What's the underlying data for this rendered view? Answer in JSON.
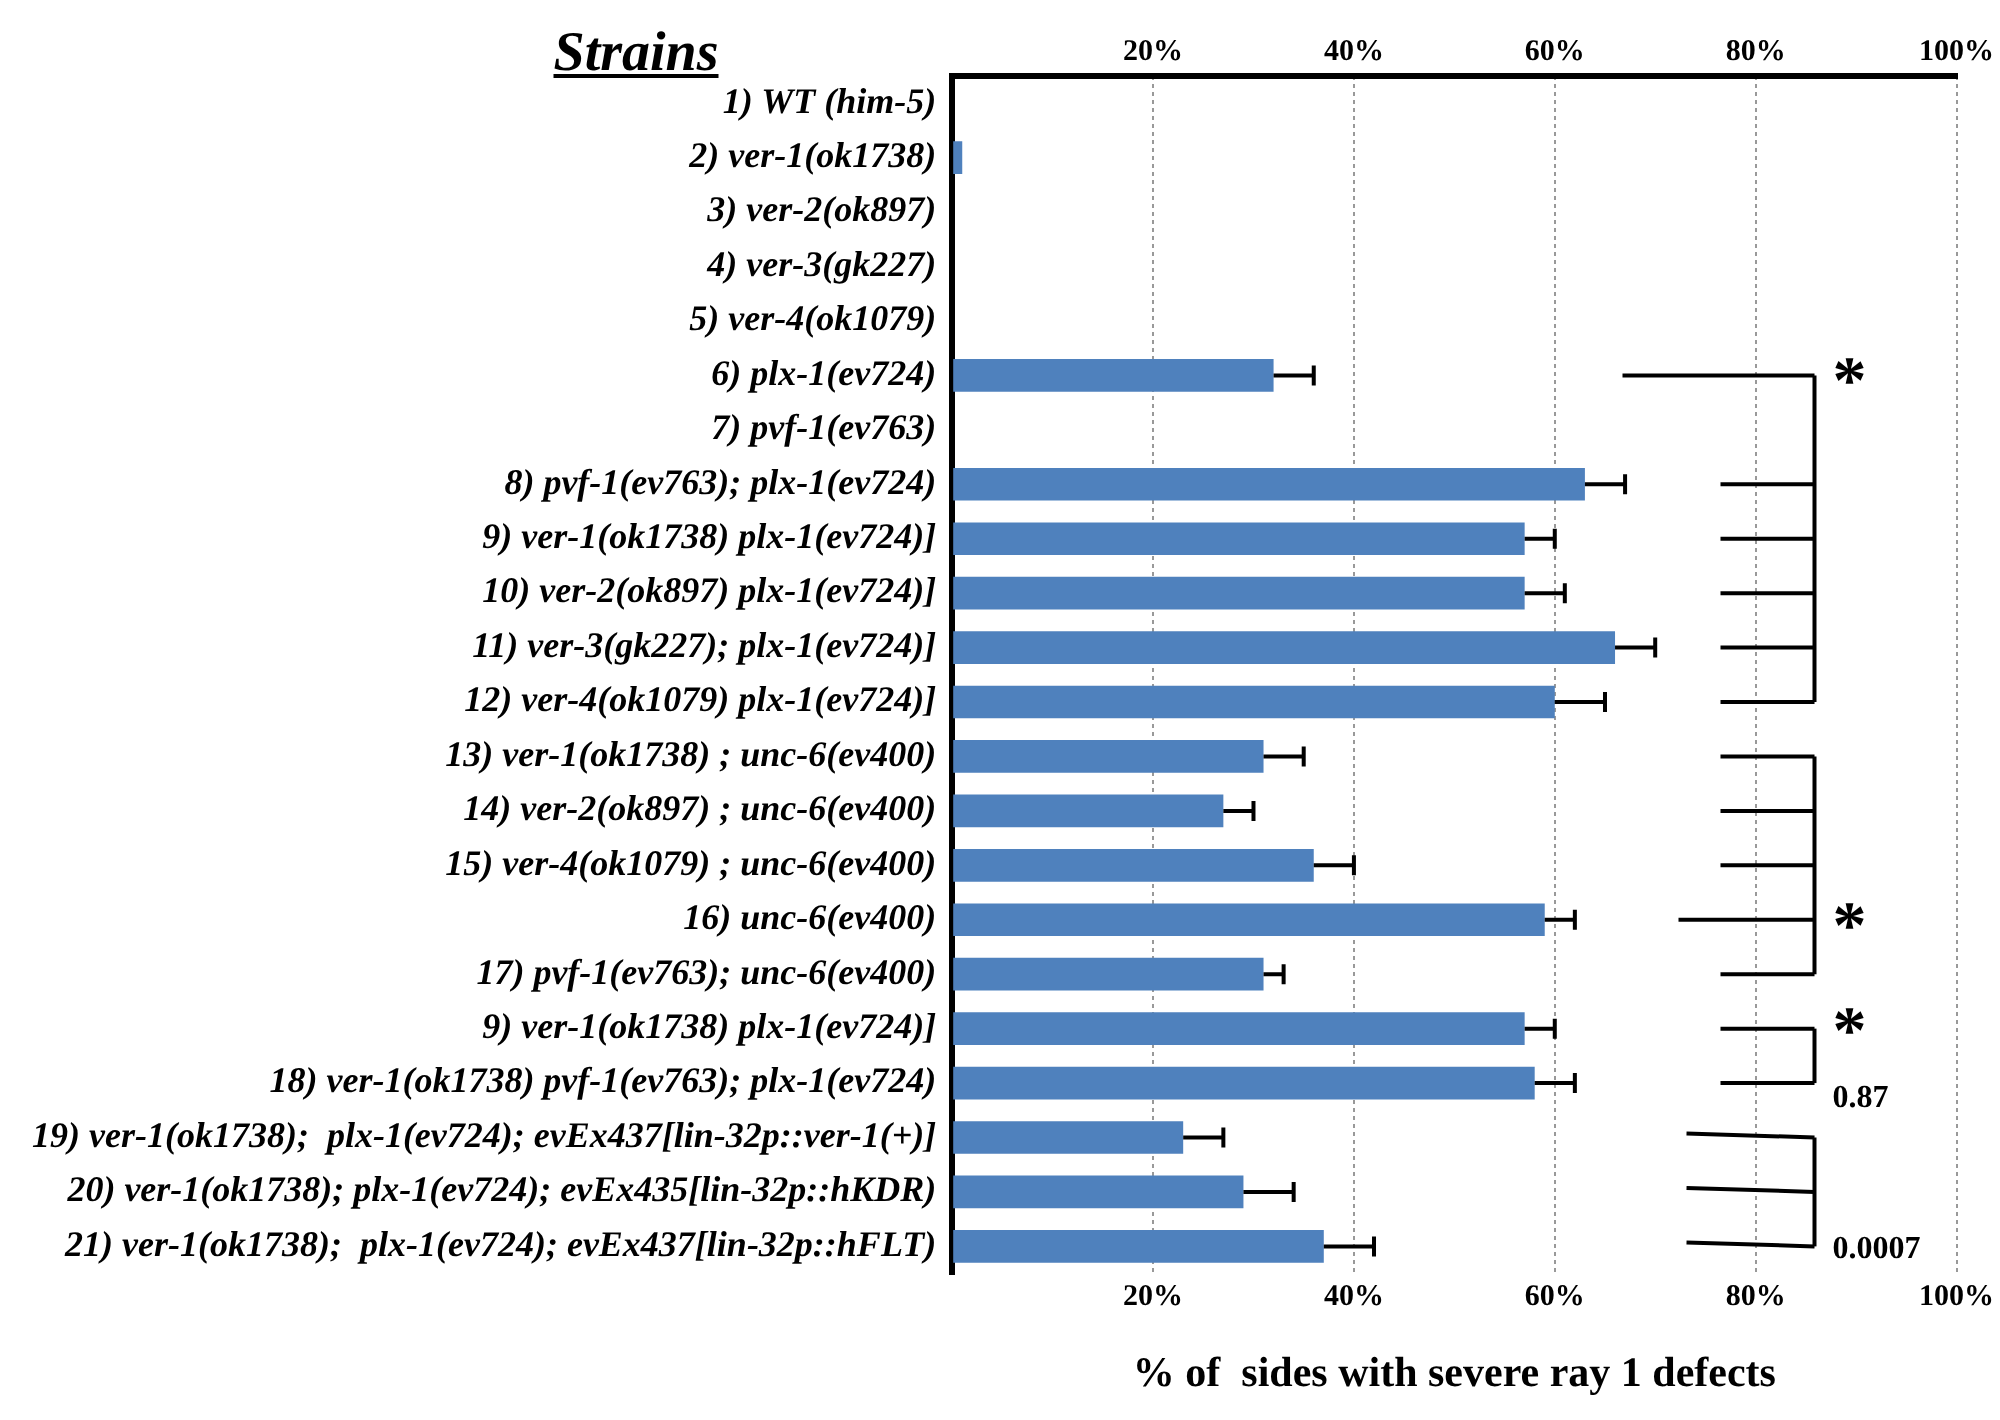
{
  "chart_data": {
    "type": "bar",
    "orientation": "horizontal",
    "title": "Strains",
    "xlabel": "% of  sides with severe ray 1 defects",
    "categories": [
      "1) WT (him-5)",
      "2) ver-1(ok1738)",
      "3) ver-2(ok897)",
      "4) ver-3(gk227)",
      "5) ver-4(ok1079)",
      "6) plx-1(ev724)",
      "7) pvf-1(ev763)",
      "8) pvf-1(ev763); plx-1(ev724)",
      "9) ver-1(ok1738) plx-1(ev724)]",
      "10) ver-2(ok897) plx-1(ev724)]",
      "11) ver-3(gk227); plx-1(ev724)]",
      "12) ver-4(ok1079) plx-1(ev724)]",
      "13) ver-1(ok1738) ; unc-6(ev400)",
      "14) ver-2(ok897) ; unc-6(ev400)",
      "15) ver-4(ok1079) ; unc-6(ev400)",
      "16) unc-6(ev400)",
      "17) pvf-1(ev763); unc-6(ev400)",
      "9) ver-1(ok1738) plx-1(ev724)]",
      "18) ver-1(ok1738) pvf-1(ev763); plx-1(ev724)",
      "19) ver-1(ok1738);  plx-1(ev724); evEx437[lin-32p::ver-1(+)]",
      "20) ver-1(ok1738); plx-1(ev724); evEx435[lin-32p::hKDR)",
      "21) ver-1(ok1738);  plx-1(ev724); evEx437[lin-32p::hFLT)"
    ],
    "values": [
      0,
      1,
      0,
      0,
      0,
      32,
      0,
      63,
      57,
      57,
      66,
      60,
      31,
      27,
      36,
      59,
      31,
      57,
      58,
      23,
      29,
      37
    ],
    "errors": [
      null,
      null,
      null,
      null,
      null,
      [
        32,
        36
      ],
      null,
      [
        63,
        67
      ],
      [
        57,
        60
      ],
      [
        57,
        61
      ],
      [
        66,
        70
      ],
      [
        60,
        65
      ],
      [
        31,
        35
      ],
      [
        27,
        30
      ],
      [
        36,
        40
      ],
      [
        59,
        62
      ],
      [
        31,
        33
      ],
      [
        57,
        60
      ],
      [
        58,
        62
      ],
      [
        23,
        27
      ],
      [
        29,
        34
      ],
      [
        37,
        42
      ]
    ],
    "color": "#4f81bd",
    "xlim": [
      0,
      100
    ],
    "xticks": [
      {
        "value": 0,
        "label": null
      },
      {
        "value": 20,
        "label": "20%"
      },
      {
        "value": 40,
        "label": "40%"
      },
      {
        "value": 60,
        "label": "60%"
      },
      {
        "value": 80,
        "label": "80%"
      },
      {
        "value": 100,
        "label": "100%"
      }
    ],
    "x2lim": [
      0,
      100
    ],
    "x2ticks": [
      {
        "value": 0,
        "label": null
      },
      {
        "value": 20,
        "label": "20%"
      },
      {
        "value": 40,
        "label": "40%"
      },
      {
        "value": 60,
        "label": "60%"
      },
      {
        "value": 80,
        "label": "80%"
      },
      {
        "value": 100,
        "label": "100%"
      }
    ],
    "grid": "x",
    "annotations": [
      "*",
      "*",
      "*",
      "0.87",
      "0.0007"
    ]
  }
}
